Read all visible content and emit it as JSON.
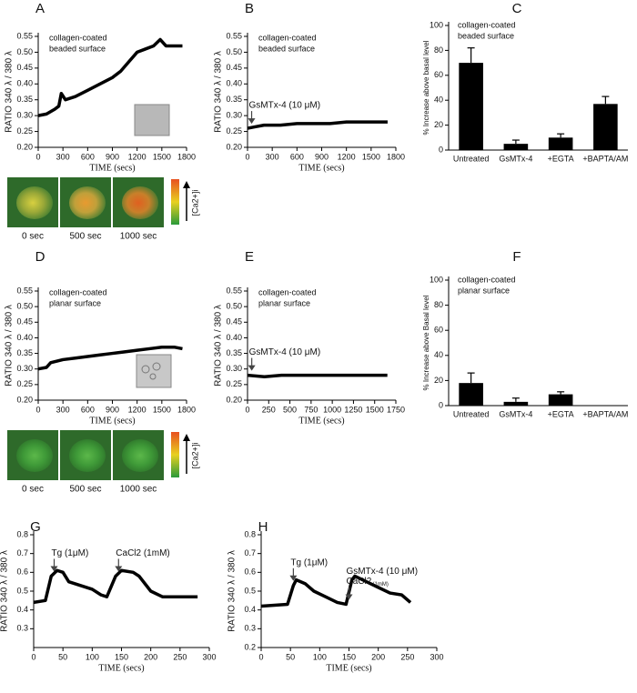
{
  "chart_data": [
    {
      "type": "line",
      "panel": "A",
      "ylabel": "RATIO 340 λ / 380 λ",
      "xlabel": "TIME (secs)",
      "note": [
        "collagen-coated",
        "beaded surface"
      ],
      "x": [
        0,
        100,
        200,
        250,
        280,
        330,
        450,
        600,
        750,
        900,
        1000,
        1100,
        1200,
        1300,
        1400,
        1480,
        1550,
        1650,
        1750
      ],
      "values": [
        0.3,
        0.305,
        0.32,
        0.33,
        0.37,
        0.35,
        0.36,
        0.38,
        0.4,
        0.42,
        0.44,
        0.47,
        0.5,
        0.51,
        0.52,
        0.54,
        0.52,
        0.52,
        0.52
      ],
      "color": "#000000",
      "xlim": [
        0,
        1800
      ],
      "xticks": [
        0,
        300,
        600,
        900,
        1200,
        1500,
        1800
      ],
      "ylim": [
        0.2,
        0.55
      ],
      "yticks": [
        {
          "value": 0.2,
          "label": "0.20"
        },
        0.25,
        {
          "value": 0.3,
          "label": "0.30"
        },
        0.35,
        {
          "value": 0.4,
          "label": "0.40"
        },
        0.45,
        {
          "value": 0.5,
          "label": "0.50"
        },
        0.55
      ],
      "image_labels": [
        "0 sec",
        "500 sec",
        "1000 sec"
      ],
      "colorbar_label": "[Ca2+]i"
    },
    {
      "type": "line",
      "panel": "B",
      "ylabel": "RATIO 340 λ / 380 λ",
      "xlabel": "TIME (secs)",
      "note": [
        "collagen-coated",
        "beaded surface"
      ],
      "x": [
        0,
        100,
        200,
        400,
        600,
        800,
        1000,
        1200,
        1400,
        1600,
        1700
      ],
      "values": [
        0.26,
        0.265,
        0.27,
        0.27,
        0.275,
        0.275,
        0.275,
        0.28,
        0.28,
        0.28,
        0.28
      ],
      "color": "#000000",
      "xlim": [
        0,
        1800
      ],
      "xticks": [
        0,
        300,
        600,
        900,
        1200,
        1500,
        1800
      ],
      "ylim": [
        0.2,
        0.55
      ],
      "yticks": [
        {
          "value": 0.2,
          "label": "0.20"
        },
        0.25,
        {
          "value": 0.3,
          "label": "0.30"
        },
        0.35,
        {
          "value": 0.4,
          "label": "0.40"
        },
        0.45,
        {
          "value": 0.5,
          "label": "0.50"
        },
        0.55
      ],
      "annotations": [
        {
          "x": 50,
          "text": [
            "GsMTx-4 (10 μM)"
          ]
        }
      ]
    },
    {
      "type": "bar",
      "panel": "C",
      "ylabel": "% Increase above basal level",
      "note": [
        "collagen-coated",
        "beaded surface"
      ],
      "categories": [
        "Untreated",
        "GsMTx-4",
        "+EGTA",
        "+BAPTA/AM"
      ],
      "values": [
        70,
        5,
        10,
        37
      ],
      "errors": [
        12,
        3,
        3,
        6
      ],
      "color": "#000000",
      "ylim": [
        0,
        100
      ],
      "yticks": [
        0,
        20,
        40,
        60,
        80,
        100
      ]
    },
    {
      "type": "line",
      "panel": "D",
      "ylabel": "RATIO 340 λ / 380 λ",
      "xlabel": "TIME (secs)",
      "note": [
        "collagen-coated",
        "planar surface"
      ],
      "x": [
        0,
        100,
        150,
        300,
        450,
        600,
        750,
        900,
        1050,
        1200,
        1350,
        1500,
        1650,
        1750
      ],
      "values": [
        0.3,
        0.305,
        0.32,
        0.33,
        0.335,
        0.34,
        0.345,
        0.35,
        0.355,
        0.36,
        0.365,
        0.37,
        0.37,
        0.365
      ],
      "color": "#000000",
      "xlim": [
        0,
        1800
      ],
      "xticks": [
        0,
        300,
        600,
        900,
        1200,
        1500,
        1800
      ],
      "ylim": [
        0.2,
        0.55
      ],
      "yticks": [
        {
          "value": 0.2,
          "label": "0.20"
        },
        0.25,
        {
          "value": 0.3,
          "label": "0.30"
        },
        0.35,
        {
          "value": 0.4,
          "label": "0.40"
        },
        0.45,
        {
          "value": 0.5,
          "label": "0.50"
        },
        0.55
      ],
      "image_labels": [
        "0 sec",
        "500 sec",
        "1000 sec"
      ],
      "colorbar_label": "[Ca2+]i"
    },
    {
      "type": "line",
      "panel": "E",
      "ylabel": "RATIO 340 λ / 380 λ",
      "xlabel": "TIME (secs)",
      "note": [
        "collagen-coated",
        "planar surface"
      ],
      "x": [
        0,
        200,
        400,
        600,
        800,
        1000,
        1200,
        1400,
        1600,
        1650
      ],
      "values": [
        0.28,
        0.275,
        0.28,
        0.28,
        0.28,
        0.28,
        0.28,
        0.28,
        0.28,
        0.28
      ],
      "color": "#000000",
      "xlim": [
        0,
        1750
      ],
      "xticks": [
        0,
        250,
        500,
        750,
        1000,
        1250,
        1500,
        1750
      ],
      "ylim": [
        0.2,
        0.55
      ],
      "yticks": [
        {
          "value": 0.2,
          "label": "0.20"
        },
        0.25,
        {
          "value": 0.3,
          "label": "0.30"
        },
        0.35,
        {
          "value": 0.4,
          "label": "0.40"
        },
        0.45,
        {
          "value": 0.5,
          "label": "0.50"
        },
        0.55
      ],
      "annotations": [
        {
          "x": 50,
          "text": [
            "GsMTx-4 (10 μM)"
          ]
        }
      ]
    },
    {
      "type": "bar",
      "panel": "F",
      "ylabel": "% Increase above Basal level",
      "note": [
        "collagen-coated",
        "planar surface"
      ],
      "categories": [
        "Untreated",
        "GsMTx-4",
        "+EGTA",
        "+BAPTA/AM"
      ],
      "values": [
        18,
        3,
        9,
        0
      ],
      "errors": [
        8,
        3,
        2,
        0
      ],
      "color": "#000000",
      "ylim": [
        0,
        100
      ],
      "yticks": [
        0,
        20,
        40,
        60,
        80,
        100
      ]
    },
    {
      "type": "line",
      "panel": "G",
      "ylabel": "RATIO 340 λ / 380 λ",
      "xlabel": "TIME (secs)",
      "x": [
        0,
        20,
        30,
        40,
        50,
        60,
        80,
        100,
        115,
        125,
        140,
        150,
        170,
        180,
        200,
        220,
        250,
        280
      ],
      "values": [
        0.44,
        0.45,
        0.58,
        0.61,
        0.6,
        0.55,
        0.53,
        0.51,
        0.48,
        0.47,
        0.58,
        0.61,
        0.6,
        0.58,
        0.5,
        0.47,
        0.47,
        0.47
      ],
      "color": "#000000",
      "xlim": [
        0,
        300
      ],
      "xticks": [
        0,
        50,
        100,
        150,
        200,
        250,
        300
      ],
      "ylim": [
        0.2,
        0.8
      ],
      "yticks": [
        0.3,
        0.4,
        0.5,
        0.6,
        0.7,
        0.8
      ],
      "annotations": [
        {
          "x": 35,
          "text": [
            "Tg (1μM)"
          ]
        },
        {
          "x": 145,
          "text": [
            "CaCl2 (1mM)"
          ]
        }
      ]
    },
    {
      "type": "line",
      "panel": "H",
      "ylabel": "RATIO 340 λ / 380 λ",
      "xlabel": "TIME (secs)",
      "x": [
        0,
        45,
        55,
        60,
        75,
        90,
        110,
        130,
        145,
        155,
        160,
        180,
        200,
        220,
        240,
        255
      ],
      "values": [
        0.42,
        0.43,
        0.53,
        0.56,
        0.54,
        0.5,
        0.47,
        0.44,
        0.43,
        0.56,
        0.58,
        0.55,
        0.52,
        0.49,
        0.48,
        0.44
      ],
      "color": "#000000",
      "xlim": [
        0,
        300
      ],
      "xticks": [
        0,
        50,
        100,
        150,
        200,
        250,
        300
      ],
      "ylim": [
        0.2,
        0.8
      ],
      "yticks": [
        0.2,
        0.3,
        0.4,
        0.5,
        0.6,
        0.7,
        0.8
      ],
      "annotations": [
        {
          "x": 55,
          "text": [
            "Tg (1μM)"
          ]
        },
        {
          "x": 150,
          "text": [
            "GsMTx-4 (10 μM)",
            "CaCl2"
          ],
          "sub": "(1mM)"
        }
      ]
    }
  ]
}
